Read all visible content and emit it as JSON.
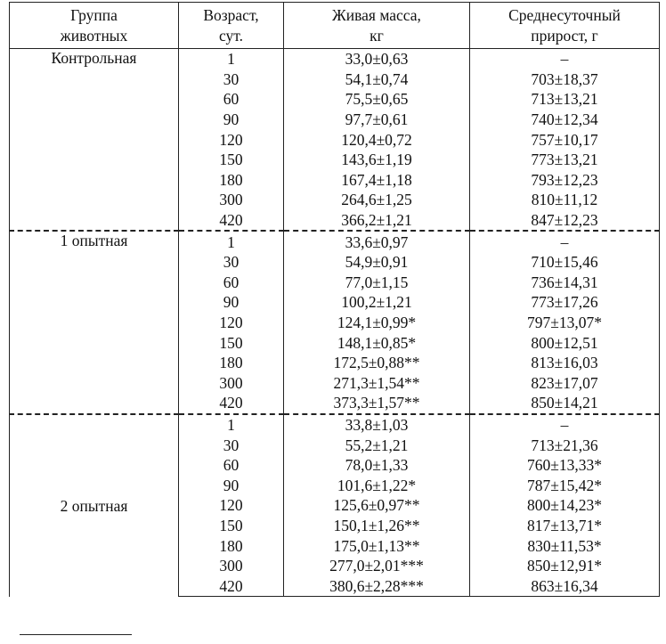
{
  "table": {
    "headers": [
      "Группа\nживотных",
      "Возраст,\nсут.",
      "Живая масса,\nкг",
      "Среднесуточный\nприрост, г"
    ],
    "groups": [
      {
        "name": "Контрольная",
        "rows": [
          [
            "1",
            "33,0±0,63",
            "–"
          ],
          [
            "30",
            "54,1±0,74",
            "703±18,37"
          ],
          [
            "60",
            "75,5±0,65",
            "713±13,21"
          ],
          [
            "90",
            "97,7±0,61",
            "740±12,34"
          ],
          [
            "120",
            "120,4±0,72",
            "757±10,17"
          ],
          [
            "150",
            "143,6±1,19",
            "773±13,21"
          ],
          [
            "180",
            "167,4±1,18",
            "793±12,23"
          ],
          [
            "300",
            "264,6±1,25",
            "810±11,12"
          ],
          [
            "420",
            "366,2±1,21",
            "847±12,23"
          ]
        ]
      },
      {
        "name": "1 опытная",
        "rows": [
          [
            "1",
            "33,6±0,97",
            "–"
          ],
          [
            "30",
            "54,9±0,91",
            "710±15,46"
          ],
          [
            "60",
            "77,0±1,15",
            "736±14,31"
          ],
          [
            "90",
            "100,2±1,21",
            "773±17,26"
          ],
          [
            "120",
            "124,1±0,99*",
            "797±13,07*"
          ],
          [
            "150",
            "148,1±0,85*",
            "800±12,51"
          ],
          [
            "180",
            "172,5±0,88**",
            "813±16,03"
          ],
          [
            "300",
            "271,3±1,54**",
            "823±17,07"
          ],
          [
            "420",
            "373,3±1,57**",
            "850±14,21"
          ]
        ]
      },
      {
        "name": "2 опытная",
        "rows": [
          [
            "1",
            "33,8±1,03",
            "–"
          ],
          [
            "30",
            "55,2±1,21",
            "713±21,36"
          ],
          [
            "60",
            "78,0±1,33",
            "760±13,33*"
          ],
          [
            "90",
            "101,6±1,22*",
            "787±15,42*"
          ],
          [
            "120",
            "125,6±0,97**",
            "800±14,23*"
          ],
          [
            "150",
            "150,1±1,26**",
            "817±13,71*"
          ],
          [
            "180",
            "175,0±1,13**",
            "830±11,53*"
          ],
          [
            "300",
            "277,0±2,01***",
            "850±12,91*"
          ],
          [
            "420",
            "380,6±2,28***",
            "863±16,34"
          ]
        ]
      }
    ]
  }
}
